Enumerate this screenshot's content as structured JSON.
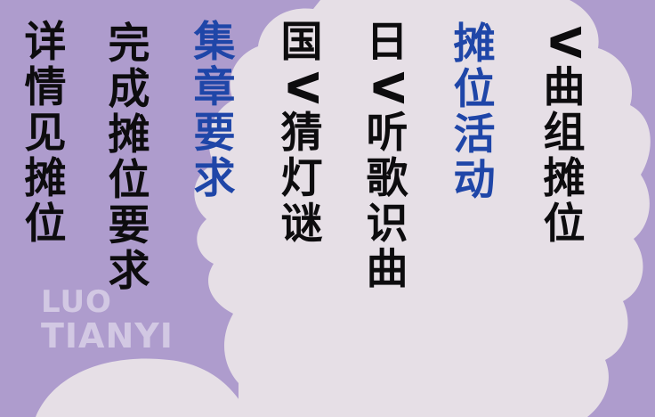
{
  "columns": [
    {
      "id": "qu-zu-tan-wei",
      "color": "black",
      "chars": [
        "V",
        "曲",
        "组",
        "摊",
        "位"
      ]
    },
    {
      "id": "tan-wei-huo-dong",
      "color": "blue",
      "chars": [
        "摊",
        "位",
        "活",
        "动"
      ]
    },
    {
      "id": "ri-ting-ge-shi-qu",
      "color": "black",
      "chars": [
        "日",
        "V",
        "听",
        "歌",
        "识",
        "曲"
      ]
    },
    {
      "id": "guo-cai-deng-mi",
      "color": "black",
      "chars": [
        "国",
        "V",
        "猜",
        "灯",
        "谜"
      ]
    },
    {
      "id": "ji-zhang-yao-qiu",
      "color": "blue",
      "chars": [
        "集",
        "章",
        "要",
        "求"
      ]
    },
    {
      "id": "wan-cheng-tan-wei-yao-qiu",
      "color": "black",
      "chars": [
        "完",
        "成",
        "摊",
        "位",
        "要",
        "求"
      ]
    },
    {
      "id": "xiang-qing-jian-tan-wei",
      "color": "black",
      "chars": [
        "详",
        "情",
        "见",
        "摊",
        "位"
      ]
    }
  ],
  "watermark": {
    "line1": "LUO",
    "line2": "TIANYI"
  },
  "colors": {
    "background": "#ae9ccd",
    "silhouette": "#e6dfe6",
    "text_black": "#0d0c0e",
    "text_blue": "#1f46a8"
  }
}
